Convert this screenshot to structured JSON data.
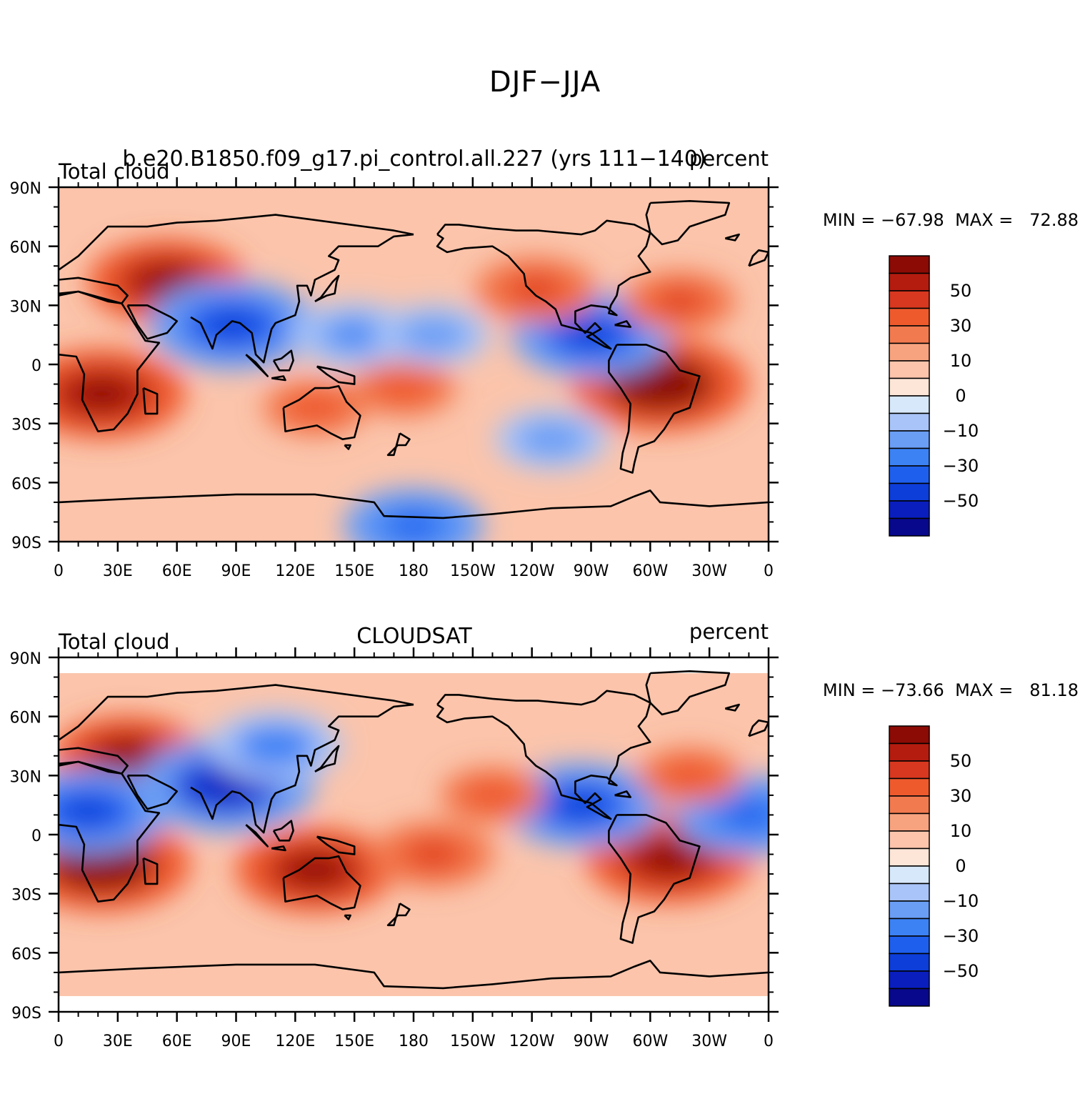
{
  "figure": {
    "title": "DJF−JJA"
  },
  "legend_palette": [
    "#08088c",
    "#0a1ebe",
    "#0d3ed9",
    "#1e5fee",
    "#3c82f5",
    "#6a9ef5",
    "#a9c4f8",
    "#d7e8fb",
    "#fde6d8",
    "#fbc4ab",
    "#f8a37f",
    "#f27a4f",
    "#ef5a2d",
    "#d8381f",
    "#b41c0f",
    "#8c0b04"
  ],
  "colorbar_labels": [
    "50",
    "30",
    "10",
    "0",
    "−10",
    "−30",
    "−50"
  ],
  "x_ticks": [
    "0",
    "30E",
    "60E",
    "90E",
    "120E",
    "150E",
    "180",
    "150W",
    "120W",
    "90W",
    "60W",
    "30W",
    "0"
  ],
  "y_ticks": [
    "90N",
    "60N",
    "30N",
    "0",
    "30S",
    "60S",
    "90S"
  ],
  "panels": [
    {
      "left_label": "Total cloud",
      "center_label": "b.e20.B1850.f09_g17.pi_control.all.227 (yrs 111−140)",
      "right_label": "percent",
      "min_label": "MIN = −67.98",
      "max_label": "MAX =   72.88"
    },
    {
      "left_label": "Total cloud",
      "center_label": "CLOUDSAT",
      "right_label": "percent",
      "min_label": "MIN = −73.66",
      "max_label": "MAX =   81.18"
    }
  ],
  "chart_data": [
    {
      "type": "heatmap",
      "title": "DJF−JJA",
      "subtitle": "b.e20.B1850.f09_g17.pi_control.all.227 (yrs 111−140)",
      "variable": "Total cloud",
      "units": "percent",
      "x_range": [
        0,
        360
      ],
      "y_range": [
        -90,
        90
      ],
      "x_tick_values": [
        0,
        30,
        60,
        90,
        120,
        150,
        180,
        210,
        240,
        270,
        300,
        330,
        360
      ],
      "y_tick_values": [
        90,
        60,
        30,
        0,
        -30,
        -60,
        -90
      ],
      "min": -67.98,
      "max": 72.88,
      "levels": [
        -70,
        -60,
        -50,
        -40,
        -30,
        -20,
        -10,
        -5,
        0,
        5,
        10,
        20,
        30,
        40,
        50,
        60,
        70
      ],
      "lat_coverage": [
        -90,
        90
      ],
      "features": [
        {
          "lon": 55,
          "lat": 42,
          "value": 55
        },
        {
          "lon": 22,
          "lat": -15,
          "value": 60
        },
        {
          "lon": 305,
          "lat": -10,
          "value": 65
        },
        {
          "lon": 88,
          "lat": 20,
          "value": -60
        },
        {
          "lon": 270,
          "lat": 15,
          "value": -55
        },
        {
          "lon": 175,
          "lat": -12,
          "value": 25
        },
        {
          "lon": 130,
          "lat": -22,
          "value": 25
        },
        {
          "lon": 315,
          "lat": 32,
          "value": 30
        },
        {
          "lon": 242,
          "lat": 38,
          "value": 35
        },
        {
          "lon": 150,
          "lat": 15,
          "value": -35
        },
        {
          "lon": 190,
          "lat": 15,
          "value": -30
        },
        {
          "lon": 250,
          "lat": -38,
          "value": -30
        },
        {
          "lon": 180,
          "lat": -82,
          "value": -45
        }
      ]
    },
    {
      "type": "heatmap",
      "title": "DJF−JJA",
      "subtitle": "CLOUDSAT",
      "variable": "Total cloud",
      "units": "percent",
      "x_range": [
        0,
        360
      ],
      "y_range": [
        -90,
        90
      ],
      "x_tick_values": [
        0,
        30,
        60,
        90,
        120,
        150,
        180,
        210,
        240,
        270,
        300,
        330,
        360
      ],
      "y_tick_values": [
        90,
        60,
        30,
        0,
        -30,
        -60,
        -90
      ],
      "min": -73.66,
      "max": 81.18,
      "levels": [
        -70,
        -60,
        -50,
        -40,
        -30,
        -20,
        -10,
        -5,
        0,
        5,
        10,
        20,
        30,
        40,
        50,
        60,
        70
      ],
      "lat_coverage": [
        -82,
        82
      ],
      "features": [
        {
          "lon": 35,
          "lat": 40,
          "value": 50
        },
        {
          "lon": 22,
          "lat": -15,
          "value": 65
        },
        {
          "lon": 130,
          "lat": -18,
          "value": 55
        },
        {
          "lon": 310,
          "lat": -12,
          "value": 60
        },
        {
          "lon": 85,
          "lat": 25,
          "value": -65
        },
        {
          "lon": 15,
          "lat": 12,
          "value": -55
        },
        {
          "lon": 265,
          "lat": 15,
          "value": -55
        },
        {
          "lon": 350,
          "lat": 10,
          "value": -50
        },
        {
          "lon": 220,
          "lat": 20,
          "value": 25
        },
        {
          "lon": 190,
          "lat": -10,
          "value": 35
        },
        {
          "lon": 320,
          "lat": 30,
          "value": 25
        },
        {
          "lon": 110,
          "lat": 45,
          "value": -40
        }
      ]
    }
  ]
}
